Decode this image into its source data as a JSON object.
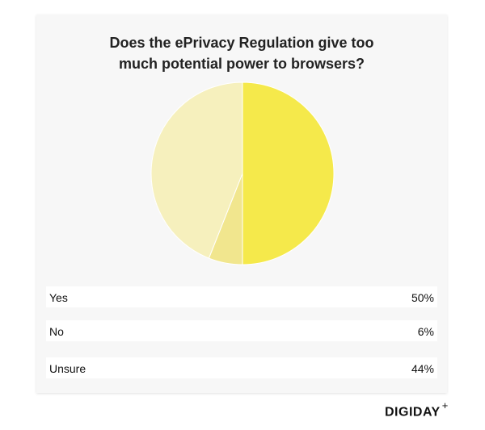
{
  "chart_data": {
    "type": "pie",
    "title": "Does the ePrivacy Regulation give too much potential power to browsers?",
    "categories": [
      "Yes",
      "No",
      "Unsure"
    ],
    "values": [
      50,
      6,
      44
    ],
    "value_labels": [
      "50%",
      "6%",
      "44%"
    ],
    "colors": [
      "#f5e94b",
      "#f1e68e",
      "#f6f0bd"
    ]
  },
  "brand": "DIGIDAY",
  "brand_mark": "+"
}
